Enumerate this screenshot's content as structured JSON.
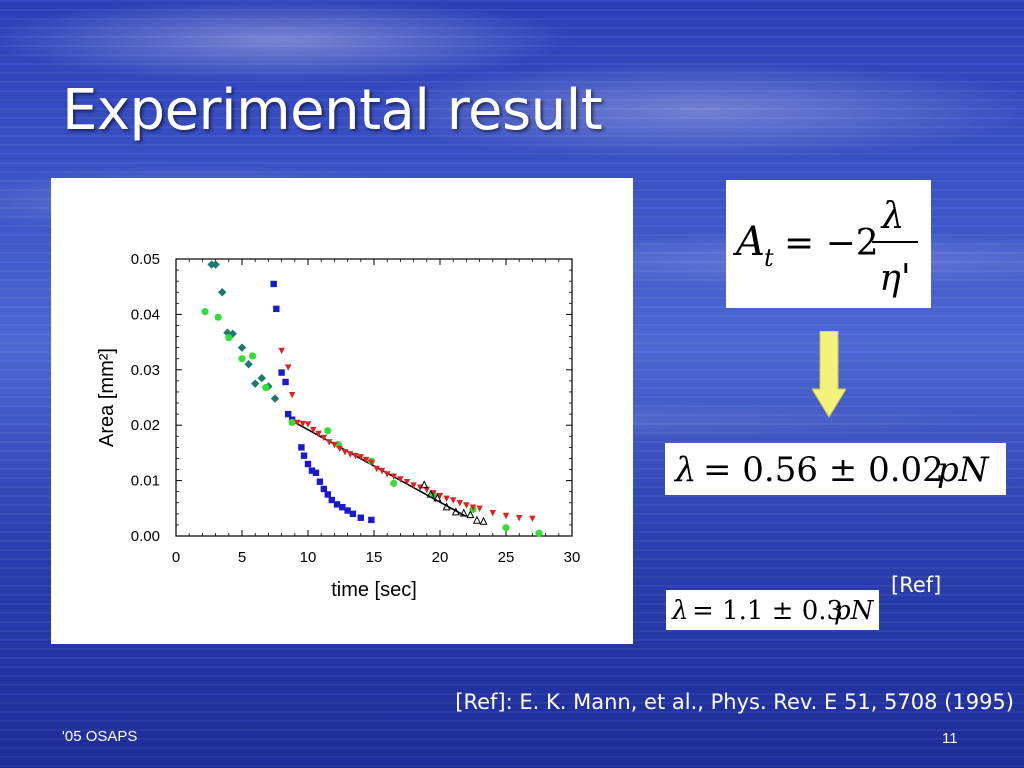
{
  "slide": {
    "title": "Experimental result",
    "footer_left": "'05 OSAPS",
    "page_number": "11",
    "ref_tag": "[Ref]",
    "reference": "[Ref]: E. K. Mann, et al., Phys. Rev. E 51, 5708 (1995)"
  },
  "equations": {
    "eq1": {
      "lhs_symbol": "A",
      "lhs_sub": "t",
      "equals": "= −2",
      "numerator": "λ",
      "denominator": "η'"
    },
    "eq2": {
      "lhs": "λ",
      "rhs": "= 0.56 ± 0.02",
      "unit": "pN"
    },
    "eq3": {
      "lhs": "λ",
      "rhs": "= 1.1 ± 0.3",
      "unit": "pN"
    }
  },
  "chart_data": {
    "type": "scatter",
    "xlabel": "time  [sec]",
    "ylabel": "Area  [mm²]",
    "xlim": [
      0,
      30
    ],
    "ylim": [
      0,
      0.05
    ],
    "xticks": [
      "0",
      "5",
      "10",
      "15",
      "20",
      "25",
      "30"
    ],
    "yticks": [
      "0.00",
      "0.01",
      "0.02",
      "0.03",
      "0.04",
      "0.05"
    ],
    "grid": false,
    "legend": "none",
    "series": [
      {
        "marker": "square",
        "color": "#1a1acc",
        "x": [
          7.4,
          7.6,
          8.0,
          8.3,
          8.5,
          8.8,
          9.5,
          9.7,
          10.0,
          10.3,
          10.6,
          10.9,
          11.2,
          11.5,
          11.8,
          12.2,
          12.6,
          13.0,
          13.4,
          14.0,
          14.8
        ],
        "y": [
          0.0455,
          0.041,
          0.0295,
          0.0278,
          0.022,
          0.021,
          0.016,
          0.0145,
          0.013,
          0.0118,
          0.0114,
          0.0098,
          0.0085,
          0.0075,
          0.0065,
          0.0057,
          0.0052,
          0.0046,
          0.004,
          0.0033,
          0.0029
        ]
      },
      {
        "marker": "diamond",
        "color": "#1a7a6e",
        "x": [
          2.7,
          3.0,
          3.5,
          3.9,
          4.3,
          5.0,
          5.5,
          6.0,
          6.5,
          7.0,
          7.5
        ],
        "y": [
          0.049,
          0.049,
          0.044,
          0.0367,
          0.0365,
          0.034,
          0.031,
          0.0275,
          0.0285,
          0.027,
          0.0248
        ]
      },
      {
        "marker": "circle",
        "color": "#33dd33",
        "x": [
          2.2,
          3.2,
          4.0,
          5.0,
          5.8,
          6.8,
          8.8,
          11.5,
          12.3,
          14.8,
          16.5,
          19.5,
          22.5,
          25.0,
          27.5
        ],
        "y": [
          0.0405,
          0.0395,
          0.0358,
          0.032,
          0.0325,
          0.0268,
          0.0205,
          0.019,
          0.0165,
          0.0135,
          0.0095,
          0.0075,
          0.0048,
          0.0015,
          0.0005
        ]
      },
      {
        "marker": "triangle-down",
        "color": "#dd2222",
        "x": [
          8.0,
          8.5,
          8.8,
          9.2,
          9.6,
          10.0,
          10.4,
          10.8,
          11.2,
          11.6,
          12.0,
          12.4,
          12.8,
          13.2,
          13.6,
          14.0,
          14.4,
          14.8,
          15.2,
          15.6,
          16.0,
          16.5,
          17.0,
          17.5,
          18.0,
          18.5,
          19.0,
          19.5,
          20.0,
          20.5,
          21.0,
          21.5,
          22.0,
          22.5,
          23.0,
          24.0,
          25.0,
          26.0,
          27.0
        ],
        "y": [
          0.0335,
          0.0305,
          0.0255,
          0.0205,
          0.0203,
          0.0202,
          0.0192,
          0.0185,
          0.0178,
          0.017,
          0.0165,
          0.0158,
          0.0152,
          0.0148,
          0.0145,
          0.0143,
          0.0138,
          0.0133,
          0.0122,
          0.0118,
          0.0112,
          0.0108,
          0.0103,
          0.0098,
          0.0092,
          0.0088,
          0.0084,
          0.0078,
          0.0073,
          0.0068,
          0.0065,
          0.006,
          0.0056,
          0.0052,
          0.005,
          0.0042,
          0.0037,
          0.0033,
          0.0032
        ]
      },
      {
        "marker": "triangle-up-open",
        "color": "#000000",
        "x": [
          18.8,
          19.3,
          19.8,
          20.5,
          21.2,
          21.8,
          22.3,
          22.8,
          23.3
        ],
        "y": [
          0.0092,
          0.0075,
          0.0068,
          0.0052,
          0.0043,
          0.0041,
          0.0038,
          0.0028,
          0.0026
        ]
      }
    ],
    "fit_line": {
      "x": [
        9.0,
        22.0
      ],
      "y": [
        0.0205,
        0.0035
      ]
    }
  }
}
